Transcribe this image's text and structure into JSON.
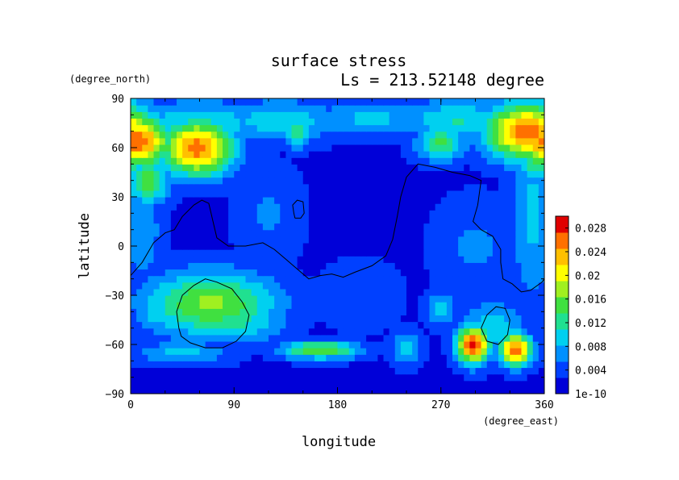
{
  "chart_data": {
    "type": "heatmap",
    "title": "surface stress",
    "subtitle": "Ls = 213.52148 degree",
    "xlabel": "longitude",
    "ylabel": "latitude",
    "x_unit": "(degree_east)",
    "y_unit": "(degree_north)",
    "xlim": [
      0,
      360
    ],
    "ylim": [
      -90,
      90
    ],
    "x_ticks": [
      "0",
      "90",
      "180",
      "270",
      "360"
    ],
    "y_ticks": [
      "90",
      "60",
      "30",
      "0",
      "−30",
      "−60",
      "−90"
    ],
    "colorbar": {
      "min": 1e-10,
      "max": 0.03,
      "tick_labels": [
        "0.028",
        "0.024",
        "0.02",
        "0.016",
        "0.012",
        "0.008",
        "0.004",
        "1e-10"
      ],
      "tick_values": [
        0.028,
        0.024,
        0.02,
        0.016,
        0.012,
        0.008,
        0.004,
        1e-10
      ],
      "colors": [
        "#0000d8",
        "#0040ff",
        "#0090ff",
        "#00d0f0",
        "#20e090",
        "#40e040",
        "#a0f020",
        "#ffff00",
        "#ffc000",
        "#ff7000",
        "#e00000"
      ]
    },
    "grid": false,
    "background_value": 0.002,
    "features": [
      {
        "lon": 5,
        "lat": 64,
        "peak": 0.027,
        "rx": 22,
        "ry": 11
      },
      {
        "lon": 58,
        "lat": 60,
        "peak": 0.026,
        "rx": 22,
        "ry": 12
      },
      {
        "lon": 15,
        "lat": 40,
        "peak": 0.015,
        "rx": 14,
        "ry": 10
      },
      {
        "lon": 60,
        "lat": 75,
        "peak": 0.011,
        "rx": 40,
        "ry": 10
      },
      {
        "lon": 130,
        "lat": 77,
        "peak": 0.01,
        "rx": 40,
        "ry": 9
      },
      {
        "lon": 210,
        "lat": 78,
        "peak": 0.009,
        "rx": 40,
        "ry": 8
      },
      {
        "lon": 285,
        "lat": 77,
        "peak": 0.011,
        "rx": 35,
        "ry": 9
      },
      {
        "lon": 345,
        "lat": 70,
        "peak": 0.027,
        "rx": 25,
        "ry": 12
      },
      {
        "lon": 355,
        "lat": 55,
        "peak": 0.016,
        "rx": 12,
        "ry": 10
      },
      {
        "lon": 270,
        "lat": 63,
        "peak": 0.014,
        "rx": 15,
        "ry": 8
      },
      {
        "lon": 145,
        "lat": 70,
        "peak": 0.013,
        "rx": 8,
        "ry": 7
      },
      {
        "lon": 350,
        "lat": 20,
        "peak": 0.009,
        "rx": 14,
        "ry": 40
      },
      {
        "lon": 10,
        "lat": 10,
        "peak": 0.008,
        "rx": 12,
        "ry": 25
      },
      {
        "lon": 70,
        "lat": -35,
        "peak": 0.017,
        "rx": 40,
        "ry": 14
      },
      {
        "lon": 90,
        "lat": -45,
        "peak": 0.012,
        "rx": 30,
        "ry": 10
      },
      {
        "lon": 30,
        "lat": -42,
        "peak": 0.01,
        "rx": 20,
        "ry": 8
      },
      {
        "lon": 165,
        "lat": -63,
        "peak": 0.016,
        "rx": 25,
        "ry": 4
      },
      {
        "lon": 45,
        "lat": -65,
        "peak": 0.009,
        "rx": 30,
        "ry": 5
      },
      {
        "lon": 240,
        "lat": -62,
        "peak": 0.009,
        "rx": 10,
        "ry": 8
      },
      {
        "lon": 270,
        "lat": -38,
        "peak": 0.009,
        "rx": 10,
        "ry": 8
      },
      {
        "lon": 298,
        "lat": -60,
        "peak": 0.029,
        "rx": 10,
        "ry": 8
      },
      {
        "lon": 335,
        "lat": -63,
        "peak": 0.027,
        "rx": 10,
        "ry": 7
      },
      {
        "lon": 315,
        "lat": -50,
        "peak": 0.01,
        "rx": 20,
        "ry": 12
      },
      {
        "lon": 120,
        "lat": 20,
        "peak": 0.006,
        "rx": 20,
        "ry": 20
      },
      {
        "lon": 300,
        "lat": 0,
        "peak": 0.006,
        "rx": 25,
        "ry": 20
      },
      {
        "lon": 200,
        "lat": -30,
        "peak": 0.005,
        "rx": 25,
        "ry": 15
      }
    ],
    "contours": [
      [
        [
          0,
          -18
        ],
        [
          10,
          -10
        ],
        [
          20,
          2
        ],
        [
          30,
          8
        ],
        [
          38,
          10
        ],
        [
          45,
          18
        ],
        [
          55,
          25
        ],
        [
          62,
          28
        ],
        [
          68,
          26
        ],
        [
          72,
          14
        ],
        [
          75,
          5
        ],
        [
          85,
          0
        ],
        [
          100,
          0
        ],
        [
          115,
          2
        ],
        [
          125,
          -2
        ],
        [
          135,
          -8
        ],
        [
          145,
          -14
        ],
        [
          155,
          -20
        ],
        [
          165,
          -18
        ],
        [
          175,
          -17
        ],
        [
          185,
          -19
        ],
        [
          195,
          -16
        ],
        [
          210,
          -12
        ],
        [
          222,
          -6
        ],
        [
          228,
          4
        ],
        [
          232,
          18
        ],
        [
          235,
          30
        ],
        [
          240,
          42
        ],
        [
          250,
          50
        ],
        [
          265,
          48
        ],
        [
          280,
          45
        ],
        [
          295,
          43
        ],
        [
          305,
          40
        ],
        [
          302,
          25
        ],
        [
          298,
          15
        ],
        [
          305,
          10
        ],
        [
          315,
          6
        ],
        [
          322,
          -2
        ],
        [
          322,
          -10
        ],
        [
          324,
          -20
        ],
        [
          332,
          -23
        ],
        [
          340,
          -28
        ],
        [
          348,
          -27
        ],
        [
          358,
          -22
        ],
        [
          360,
          -20
        ]
      ],
      [
        [
          143,
          17
        ],
        [
          148,
          17
        ],
        [
          151,
          20
        ],
        [
          150,
          27
        ],
        [
          145,
          28
        ],
        [
          141,
          25
        ],
        [
          142,
          20
        ],
        [
          143,
          17
        ]
      ],
      [
        [
          42,
          -50
        ],
        [
          40,
          -40
        ],
        [
          45,
          -30
        ],
        [
          55,
          -24
        ],
        [
          65,
          -20
        ],
        [
          75,
          -22
        ],
        [
          88,
          -26
        ],
        [
          97,
          -34
        ],
        [
          103,
          -42
        ],
        [
          100,
          -52
        ],
        [
          92,
          -58
        ],
        [
          80,
          -62
        ],
        [
          65,
          -62
        ],
        [
          52,
          -59
        ],
        [
          44,
          -55
        ],
        [
          42,
          -50
        ]
      ],
      [
        [
          305,
          -50
        ],
        [
          310,
          -42
        ],
        [
          318,
          -37
        ],
        [
          326,
          -38
        ],
        [
          330,
          -45
        ],
        [
          328,
          -54
        ],
        [
          320,
          -60
        ],
        [
          310,
          -58
        ],
        [
          305,
          -50
        ]
      ]
    ]
  }
}
